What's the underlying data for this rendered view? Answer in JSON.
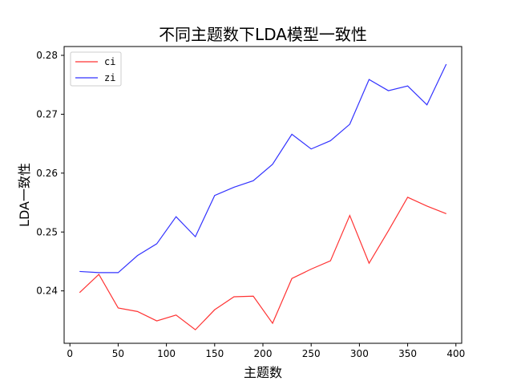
{
  "chart_data": {
    "type": "line",
    "title": "不同主题数下LDA模型一致性",
    "xlabel": "主题数",
    "ylabel": "LDA一致性",
    "xlim": [
      -6,
      406
    ],
    "ylim": [
      0.2311,
      0.2815
    ],
    "xticks": [
      0,
      50,
      100,
      150,
      200,
      250,
      300,
      350,
      400
    ],
    "yticks": [
      0.24,
      0.25,
      0.26,
      0.27,
      0.28
    ],
    "ytick_labels": [
      "0.24",
      "0.25",
      "0.26",
      "0.27",
      "0.28"
    ],
    "legend_position": "top-left",
    "grid": false,
    "x": [
      10,
      30,
      50,
      70,
      90,
      110,
      130,
      150,
      170,
      190,
      210,
      230,
      250,
      270,
      290,
      310,
      330,
      350,
      370,
      390
    ],
    "series": [
      {
        "name": "ci",
        "color": "#ff3333",
        "values": [
          0.2397,
          0.2428,
          0.2371,
          0.2365,
          0.2349,
          0.2359,
          0.2334,
          0.2368,
          0.239,
          0.2391,
          0.2345,
          0.2421,
          0.2437,
          0.2451,
          0.2528,
          0.2447,
          0.2502,
          0.2559,
          0.2544,
          0.2531
        ]
      },
      {
        "name": "zi",
        "color": "#3333ff",
        "values": [
          0.2433,
          0.2431,
          0.2431,
          0.246,
          0.248,
          0.2526,
          0.2492,
          0.2562,
          0.2576,
          0.2587,
          0.2615,
          0.2666,
          0.2641,
          0.2655,
          0.2683,
          0.2759,
          0.274,
          0.2748,
          0.2716,
          0.2785
        ]
      }
    ]
  }
}
